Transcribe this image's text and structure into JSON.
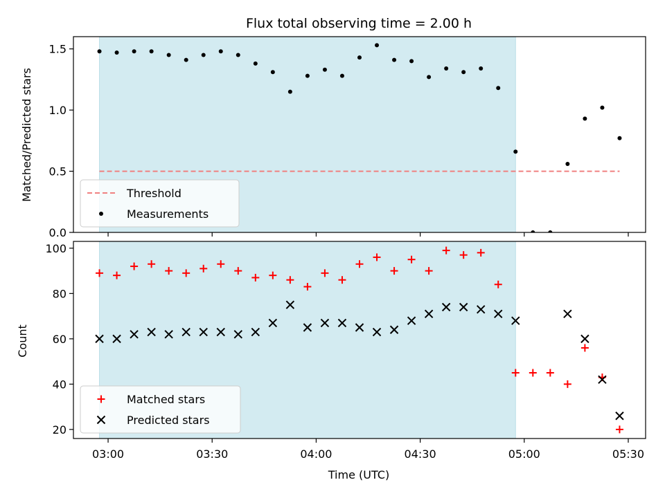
{
  "chart_data": [
    {
      "type": "scatter",
      "title": "Flux total observing time = 2.00 h",
      "xlabel": "",
      "ylabel": "Matched/Predicted stars",
      "ylim": [
        0,
        1.6
      ],
      "xlim": [
        "02:50",
        "05:35"
      ],
      "shaded_region": [
        "02:57:30",
        "04:57:30"
      ],
      "yticks": [
        "0.0",
        "0.5",
        "1.0",
        "1.5"
      ],
      "threshold": {
        "name": "Threshold",
        "value": 0.5,
        "x": [
          "02:57:30",
          "05:27:30"
        ],
        "color": "#f08080",
        "style": "dashed"
      },
      "series": [
        {
          "name": "Measurements",
          "color": "#000000",
          "marker": "dot",
          "x": [
            "02:57:30",
            "03:02:30",
            "03:07:30",
            "03:12:30",
            "03:17:30",
            "03:22:30",
            "03:27:30",
            "03:32:30",
            "03:37:30",
            "03:42:30",
            "03:47:30",
            "03:52:30",
            "03:57:30",
            "04:02:30",
            "04:07:30",
            "04:12:30",
            "04:17:30",
            "04:22:30",
            "04:27:30",
            "04:32:30",
            "04:37:30",
            "04:42:30",
            "04:47:30",
            "04:52:30",
            "04:57:30",
            "05:02:30",
            "05:07:30",
            "05:12:30",
            "05:17:30",
            "05:22:30",
            "05:27:30"
          ],
          "y": [
            1.48,
            1.47,
            1.48,
            1.48,
            1.45,
            1.41,
            1.45,
            1.48,
            1.45,
            1.38,
            1.31,
            1.15,
            1.28,
            1.33,
            1.28,
            1.43,
            1.53,
            1.41,
            1.4,
            1.27,
            1.34,
            1.31,
            1.34,
            1.18,
            0.66,
            0.0,
            0.0,
            0.56,
            0.93,
            1.02,
            0.77
          ]
        }
      ],
      "legend": "lower-left"
    },
    {
      "type": "scatter",
      "title": "",
      "xlabel": "Time (UTC)",
      "ylabel": "Count",
      "ylim": [
        16,
        103
      ],
      "xlim": [
        "02:50",
        "05:35"
      ],
      "shaded_region": [
        "02:57:30",
        "04:57:30"
      ],
      "xticks": [
        "03:00",
        "03:30",
        "04:00",
        "04:30",
        "05:00",
        "05:30"
      ],
      "yticks": [
        "20",
        "40",
        "60",
        "80",
        "100"
      ],
      "series": [
        {
          "name": "Matched stars",
          "color": "#ff0000",
          "marker": "plus",
          "x": [
            "02:57:30",
            "03:02:30",
            "03:07:30",
            "03:12:30",
            "03:17:30",
            "03:22:30",
            "03:27:30",
            "03:32:30",
            "03:37:30",
            "03:42:30",
            "03:47:30",
            "03:52:30",
            "03:57:30",
            "04:02:30",
            "04:07:30",
            "04:12:30",
            "04:17:30",
            "04:22:30",
            "04:27:30",
            "04:32:30",
            "04:37:30",
            "04:42:30",
            "04:47:30",
            "04:52:30",
            "04:57:30",
            "05:02:30",
            "05:07:30",
            "05:12:30",
            "05:17:30",
            "05:22:30",
            "05:27:30"
          ],
          "y": [
            89,
            88,
            92,
            93,
            90,
            89,
            91,
            93,
            90,
            87,
            88,
            86,
            83,
            89,
            86,
            93,
            96,
            90,
            95,
            90,
            99,
            97,
            98,
            84,
            45,
            45,
            45,
            40,
            56,
            43,
            20
          ]
        },
        {
          "name": "Predicted stars",
          "color": "#000000",
          "marker": "x",
          "x": [
            "02:57:30",
            "03:02:30",
            "03:07:30",
            "03:12:30",
            "03:17:30",
            "03:22:30",
            "03:27:30",
            "03:32:30",
            "03:37:30",
            "03:42:30",
            "03:47:30",
            "03:52:30",
            "03:57:30",
            "04:02:30",
            "04:07:30",
            "04:12:30",
            "04:17:30",
            "04:22:30",
            "04:27:30",
            "04:32:30",
            "04:37:30",
            "04:42:30",
            "04:47:30",
            "04:52:30",
            "04:57:30",
            "05:12:30",
            "05:17:30",
            "05:22:30",
            "05:27:30"
          ],
          "y": [
            60,
            60,
            62,
            63,
            62,
            63,
            63,
            63,
            62,
            63,
            67,
            75,
            65,
            67,
            67,
            65,
            63,
            64,
            68,
            71,
            74,
            74,
            73,
            71,
            68,
            71,
            60,
            42,
            26
          ]
        }
      ],
      "legend": "lower-left"
    }
  ],
  "colors": {
    "shade": "#d3ebf1",
    "threshold": "#f08080",
    "matched": "#ff0000",
    "predicted": "#000000"
  }
}
